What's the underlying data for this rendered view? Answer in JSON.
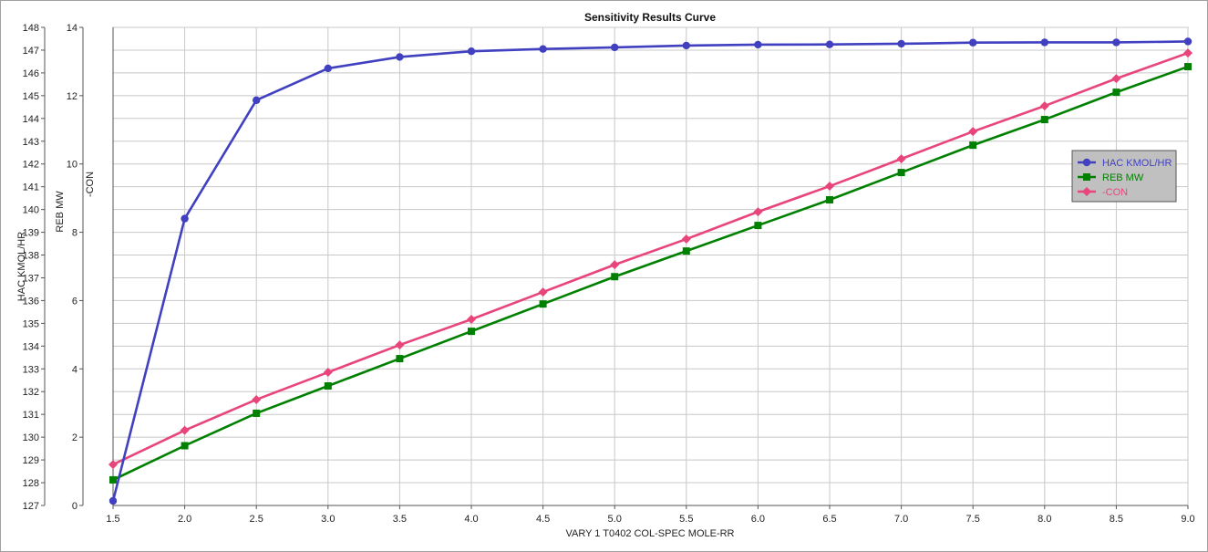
{
  "chart_data": {
    "type": "line",
    "title": "Sensitivity Results Curve",
    "xlabel": "VARY   1 T0402 COL-SPEC MOLE-RR",
    "x": [
      1.5,
      2.0,
      2.5,
      3.0,
      3.5,
      4.0,
      4.5,
      5.0,
      5.5,
      6.0,
      6.5,
      7.0,
      7.5,
      8.0,
      8.5,
      9.0
    ],
    "xlim": [
      1.5,
      9.0
    ],
    "xticks": [
      "1.5",
      "2.0",
      "2.5",
      "3.0",
      "3.5",
      "4.0",
      "4.5",
      "5.0",
      "5.5",
      "6.0",
      "6.5",
      "7.0",
      "7.5",
      "8.0",
      "8.5",
      "9.0"
    ],
    "axes": [
      {
        "label": "HAC KMOL/HR",
        "ylim": [
          127,
          148
        ],
        "ticks": [
          "127",
          "128",
          "129",
          "130",
          "131",
          "132",
          "133",
          "134",
          "135",
          "136",
          "137",
          "138",
          "139",
          "140",
          "141",
          "142",
          "143",
          "144",
          "145",
          "146",
          "147",
          "148"
        ]
      },
      {
        "label": "REB MW",
        "ylim": [
          0,
          14
        ],
        "ticks": [
          "0",
          "2",
          "4",
          "6",
          "8",
          "10",
          "12",
          "14"
        ]
      },
      {
        "label": "-CON",
        "ylim": [
          0,
          14
        ],
        "ticks": []
      }
    ],
    "series": [
      {
        "name": "HAC KMOL/HR",
        "axis": 0,
        "color": "#4040c0",
        "marker": "circle",
        "values": [
          127.2,
          139.6,
          144.8,
          146.2,
          146.7,
          146.95,
          147.05,
          147.12,
          147.2,
          147.24,
          147.25,
          147.28,
          147.33,
          147.34,
          147.34,
          147.38
        ]
      },
      {
        "name": "REB MW",
        "axis": 1,
        "color": "#008000",
        "marker": "square",
        "values": [
          0.75,
          1.75,
          2.7,
          3.5,
          4.3,
          5.1,
          5.9,
          6.7,
          7.45,
          8.2,
          8.95,
          9.75,
          10.55,
          11.3,
          12.1,
          12.85
        ]
      },
      {
        "name": "-CON",
        "axis": 2,
        "color": "#e8457a",
        "marker": "diamond",
        "values": [
          1.2,
          2.2,
          3.1,
          3.9,
          4.7,
          5.45,
          6.25,
          7.05,
          7.8,
          8.6,
          9.35,
          10.15,
          10.95,
          11.7,
          12.5,
          13.25
        ]
      }
    ],
    "grid": true,
    "legend": "right"
  },
  "colors": {
    "grid": "#c8c8c8",
    "legend_bg": "#c0c0c0",
    "axis": "#555555"
  }
}
